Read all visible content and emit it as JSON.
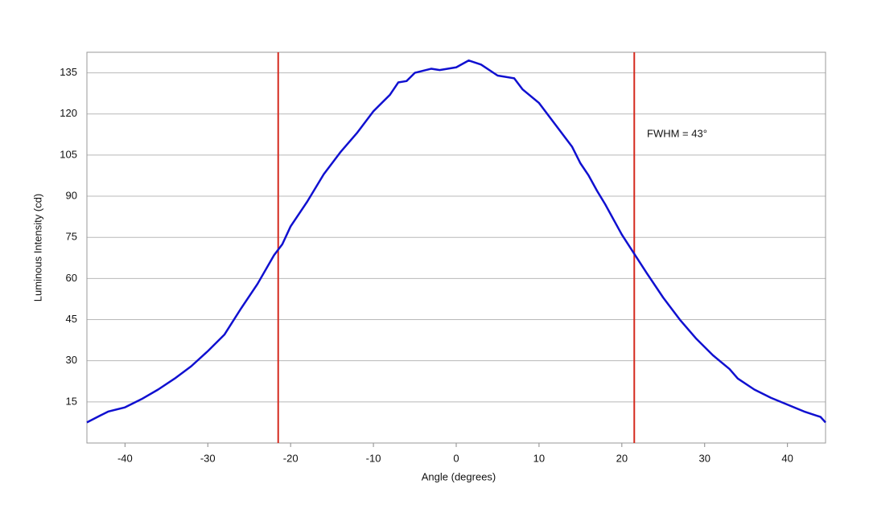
{
  "chart_data": {
    "type": "line",
    "xlabel": "Angle (degrees)",
    "ylabel": "Luminous Intensity (cd)",
    "annotation": "FWHM = 43°",
    "x": [
      -44.6,
      -43,
      -42,
      -40,
      -38,
      -36,
      -34,
      -32,
      -30,
      -28,
      -26,
      -24,
      -22,
      -21,
      -20,
      -18,
      -16,
      -14,
      -12,
      -10,
      -8,
      -7,
      -6,
      -5,
      -3,
      -2,
      0,
      1.5,
      3,
      5,
      7,
      8,
      10,
      12,
      14,
      15,
      16,
      17,
      18,
      20,
      21.5,
      23,
      25,
      27,
      29,
      31,
      33,
      34,
      36,
      38,
      40,
      42,
      44,
      44.6
    ],
    "series": [
      {
        "color": "#1010d0",
        "values": [
          7.5,
          10,
          11.5,
          13,
          16,
          19.5,
          23.5,
          28,
          33.5,
          39.5,
          49,
          58,
          68.5,
          72.5,
          79,
          88,
          98,
          106,
          113,
          121,
          127,
          131.5,
          132,
          135,
          136.5,
          136,
          137,
          139.5,
          138,
          134,
          133,
          129,
          124,
          116,
          108,
          102,
          97.5,
          92,
          87,
          76,
          69,
          62,
          53,
          45,
          38,
          32,
          27,
          23.5,
          19.5,
          16.5,
          14,
          11.5,
          9.5,
          7.5
        ]
      }
    ],
    "vlines": [
      -21.5,
      21.5
    ],
    "vline_color": "#d42a1e",
    "xlim": [
      -44.6,
      44.6
    ],
    "xticks": [
      -40,
      -30,
      -20,
      -10,
      0,
      10,
      20,
      30,
      40
    ],
    "ylim": [
      0,
      142.5
    ],
    "yticks": [
      15,
      30,
      45,
      60,
      75,
      90,
      105,
      120,
      135
    ],
    "grid": true
  }
}
